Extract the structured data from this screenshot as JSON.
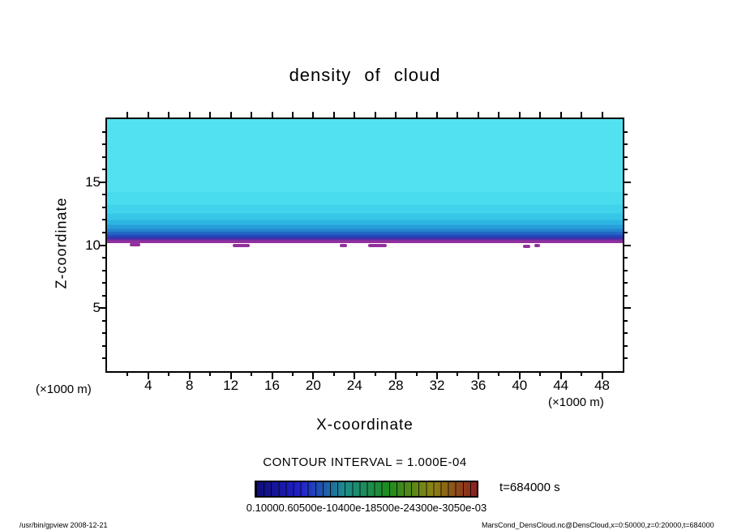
{
  "chart_data": {
    "type": "heatmap",
    "title": "density of cloud",
    "xlabel": "X-coordinate",
    "ylabel": "Z-coordinate",
    "x_unit_left": "(×1000 m)",
    "x_unit_right": "(×1000 m)",
    "xlim": [
      0,
      50
    ],
    "ylim": [
      0,
      20
    ],
    "x_ticks": [
      4,
      8,
      12,
      16,
      20,
      24,
      28,
      32,
      36,
      40,
      44,
      48
    ],
    "y_ticks": [
      5,
      10,
      15
    ],
    "grid": false,
    "contour_interval_label": "CONTOUR INTERVAL = 1.000E-04",
    "time_label": "t=684000 s",
    "colorbar": {
      "labels_overlapped_text": "0.10000.60500e-10400e-18500e-24300e-3050e-03",
      "colors": [
        "#0d0d78",
        "#2121cc",
        "#1e8c8c",
        "#1e8c1e",
        "#8c8214",
        "#8c1e1e"
      ],
      "segments": 30
    },
    "field": {
      "description": "Filled-contour cloud density, nearly uniform horizontally: cyan at top grading to deep blue near z≈10.6, thin purple band at cloud base z≈10.2, white (clear) below.",
      "bands": [
        {
          "z_from": 14.2,
          "z_to": 20.0,
          "color": "#52e2ef"
        },
        {
          "z_from": 13.2,
          "z_to": 14.2,
          "color": "#49dcee"
        },
        {
          "z_from": 12.5,
          "z_to": 13.2,
          "color": "#40d4ec"
        },
        {
          "z_from": 12.0,
          "z_to": 12.5,
          "color": "#36c7e8"
        },
        {
          "z_from": 11.6,
          "z_to": 12.0,
          "color": "#2db5e2"
        },
        {
          "z_from": 11.3,
          "z_to": 11.6,
          "color": "#279ed9"
        },
        {
          "z_from": 11.05,
          "z_to": 11.3,
          "color": "#2484cf"
        },
        {
          "z_from": 10.85,
          "z_to": 11.05,
          "color": "#2268c5"
        },
        {
          "z_from": 10.65,
          "z_to": 10.85,
          "color": "#2349ba"
        },
        {
          "z_from": 10.5,
          "z_to": 10.65,
          "color": "#2f33ae"
        },
        {
          "z_from": 10.38,
          "z_to": 10.5,
          "color": "#5c2ea6"
        },
        {
          "z_from": 10.15,
          "z_to": 10.38,
          "color": "#92309e"
        },
        {
          "z_from": 0.0,
          "z_to": 10.15,
          "color": "#ffffff"
        }
      ],
      "cloud_base_marks": [
        {
          "x": 2.2,
          "w": 1.0,
          "z": 10.1
        },
        {
          "x": 12.2,
          "w": 1.6,
          "z": 10.05
        },
        {
          "x": 22.6,
          "w": 0.7,
          "z": 10.05
        },
        {
          "x": 25.3,
          "w": 1.8,
          "z": 10.05
        },
        {
          "x": 40.3,
          "w": 0.7,
          "z": 10.0
        },
        {
          "x": 41.4,
          "w": 0.6,
          "z": 10.05
        }
      ]
    }
  },
  "footer": {
    "left": "/usr/bin/gpview  2008-12-21",
    "right": "MarsCond_DensCloud.nc@DensCloud,x=0:50000,z=0:20000,t=684000"
  }
}
